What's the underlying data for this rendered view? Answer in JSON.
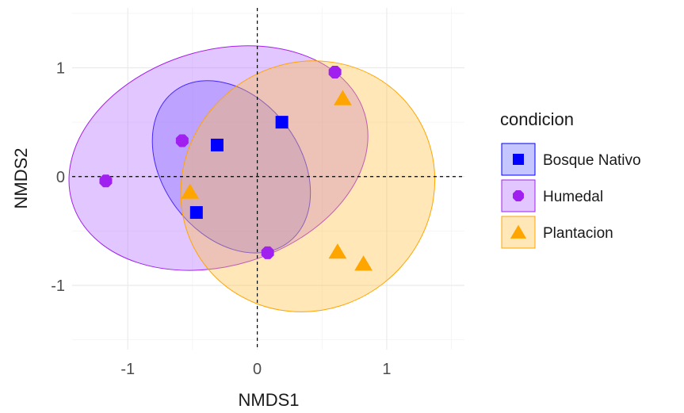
{
  "chart_data": {
    "type": "scatter",
    "xlabel": "NMDS1",
    "ylabel": "NMDS2",
    "xlim": [
      -1.43,
      1.6
    ],
    "ylim": [
      -1.59,
      1.55
    ],
    "x_ticks": [
      -1,
      0,
      1
    ],
    "x_tick_labels": [
      "-1",
      "0",
      "1"
    ],
    "y_ticks": [
      -1,
      0,
      1
    ],
    "y_tick_labels": [
      "-1",
      "0",
      "1"
    ],
    "grid": true,
    "reference_lines": {
      "x": 0,
      "y": 0,
      "style": "dashed"
    },
    "legend": {
      "title": "condicion",
      "position": "right"
    },
    "series": [
      {
        "name": "Bosque Nativo",
        "marker": "square",
        "color": "#0000ff",
        "fill": "#6666ff",
        "points": [
          {
            "x": 0.19,
            "y": 0.5
          },
          {
            "x": -0.31,
            "y": 0.29
          },
          {
            "x": -0.47,
            "y": -0.33
          }
        ],
        "ellipse": {
          "cx": -0.2,
          "cy": 0.09,
          "rx": 0.53,
          "ry": 0.87,
          "angle": -37
        }
      },
      {
        "name": "Humedal",
        "marker": "octagon",
        "color": "#a020f0",
        "fill": "#b469ff",
        "points": [
          {
            "x": 0.6,
            "y": 0.96
          },
          {
            "x": -0.58,
            "y": 0.33
          },
          {
            "x": -1.17,
            "y": -0.04
          },
          {
            "x": 0.08,
            "y": -0.7
          }
        ],
        "ellipse": {
          "cx": -0.3,
          "cy": 0.17,
          "rx": 1.18,
          "ry": 0.99,
          "angle": -17
        }
      },
      {
        "name": "Plantacion",
        "marker": "triangle",
        "color": "#ffa500",
        "fill": "#ffc042",
        "points": [
          {
            "x": 0.66,
            "y": 0.72
          },
          {
            "x": -0.52,
            "y": -0.14
          },
          {
            "x": 0.62,
            "y": -0.69
          },
          {
            "x": 0.82,
            "y": -0.8
          }
        ],
        "ellipse": {
          "cx": 0.39,
          "cy": -0.09,
          "rx": 1.0,
          "ry": 1.13,
          "angle": -38
        }
      }
    ]
  }
}
